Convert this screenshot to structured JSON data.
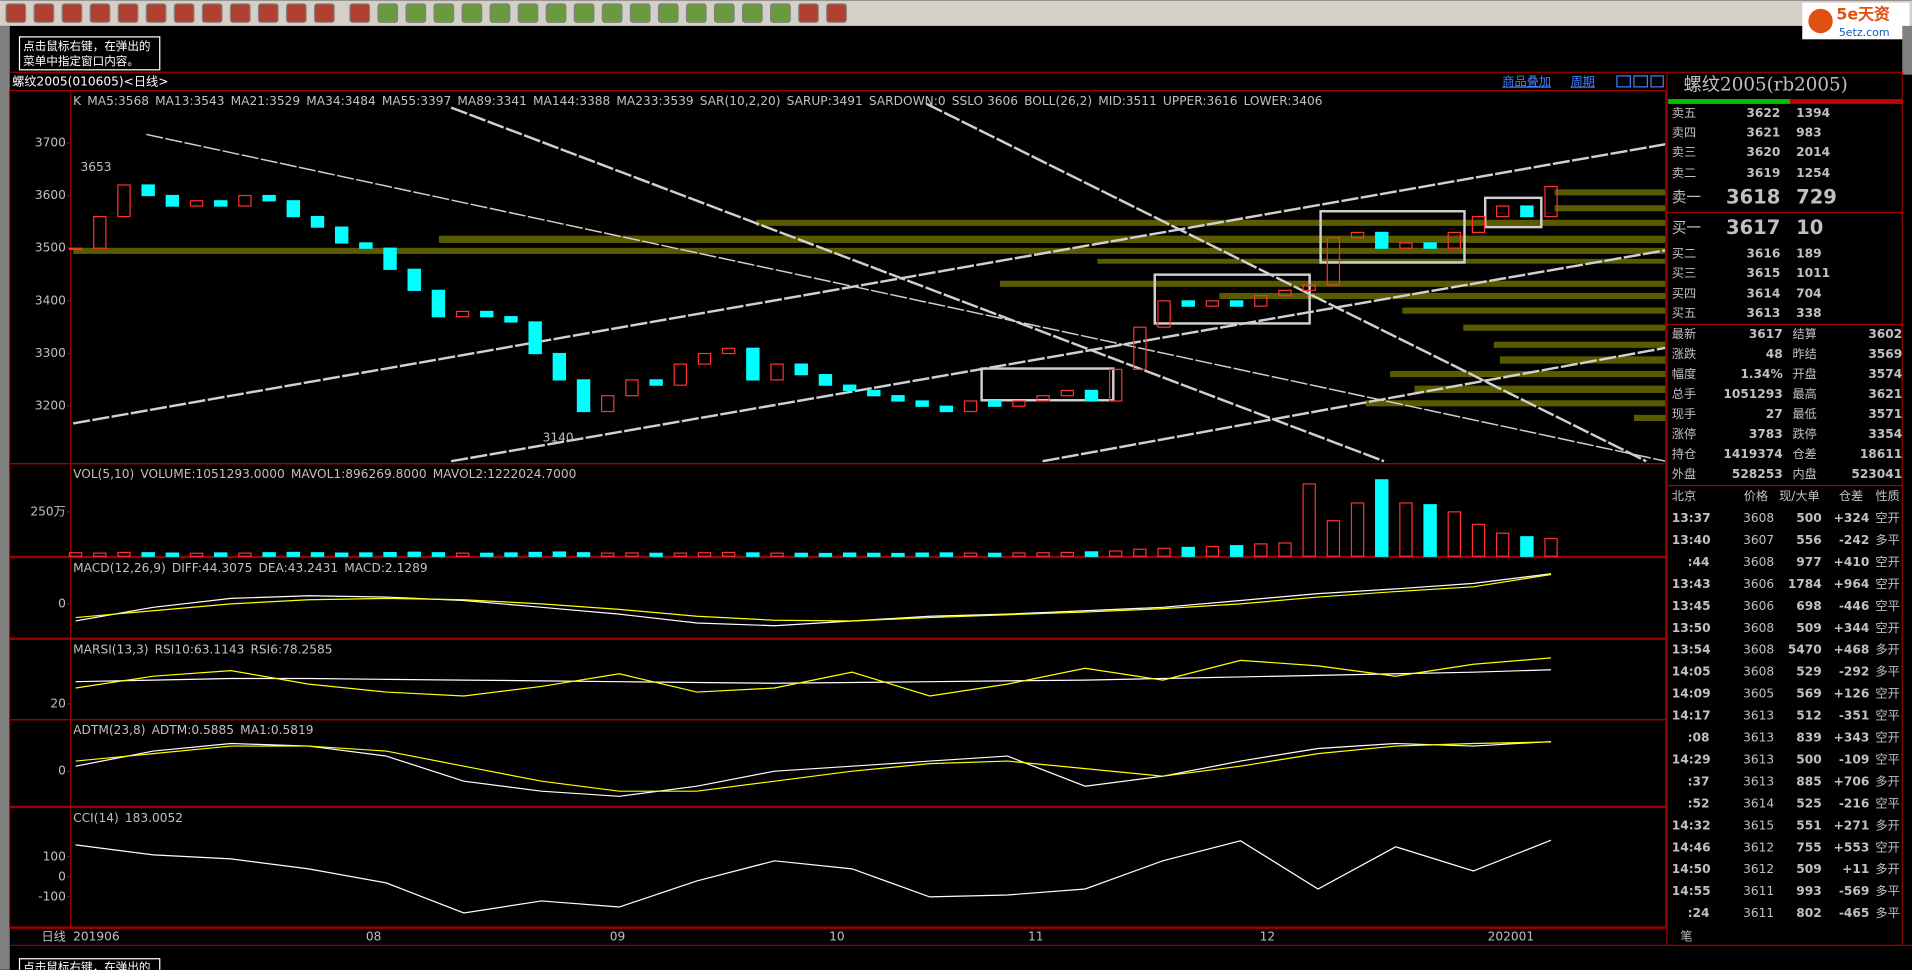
{
  "info_box": {
    "lines": [
      "点击鼠标右键，在弹出的",
      "菜单中指定窗口内容。"
    ]
  },
  "logo": {
    "brand": "5e天资",
    "site": "5etz.com"
  },
  "chart_header": {
    "title": "螺纹2005(010605)<日线>",
    "links": [
      "商品叠加",
      "周期"
    ]
  },
  "x_axis": {
    "period": "日线",
    "labels": [
      "201906",
      "08",
      "09",
      "10",
      "11",
      "12",
      "202001"
    ]
  },
  "chart_data": [
    {
      "type": "candle",
      "legend_items": [
        {
          "text": "K",
          "color": "#ffffff"
        },
        {
          "text": "MA5:3568",
          "color": "#ffffff"
        },
        {
          "text": "MA13:3543",
          "color": "#ffff00"
        },
        {
          "text": "MA21:3529",
          "color": "#ff00ff"
        },
        {
          "text": "MA34:3484",
          "color": "#00ff00"
        },
        {
          "text": "MA55:3397",
          "color": "#8080ff"
        },
        {
          "text": "MA89:3341",
          "color": "#ff8000"
        },
        {
          "text": "MA144:3388",
          "color": "#40a0ff"
        },
        {
          "text": "MA233:3539",
          "color": "#ff4040"
        },
        {
          "text": "SAR(10,2,20)",
          "color": "#c0c0c0"
        },
        {
          "text": "SARUP:3491",
          "color": "#ff0000"
        },
        {
          "text": "SARDOWN:0",
          "color": "#00ff00"
        },
        {
          "text": "SSLO 3606",
          "color": "#ffffff"
        },
        {
          "text": "BOLL(26,2)",
          "color": "#ffffff"
        },
        {
          "text": "MID:3511",
          "color": "#ffff00"
        },
        {
          "text": "UPPER:3616",
          "color": "#ff00ff"
        },
        {
          "text": "LOWER:3406",
          "color": "#00ff00"
        }
      ],
      "series": [
        {
          "name": "K",
          "up_color": "#ff3030",
          "down_color": "#00ffff",
          "values": [
            3500,
            3560,
            3620,
            3600,
            3580,
            3590,
            3580,
            3600,
            3590,
            3560,
            3540,
            3510,
            3500,
            3460,
            3420,
            3370,
            3380,
            3370,
            3360,
            3300,
            3250,
            3190,
            3220,
            3250,
            3240,
            3280,
            3300,
            3310,
            3250,
            3280,
            3260,
            3240,
            3230,
            3220,
            3210,
            3200,
            3190,
            3210,
            3200,
            3210,
            3220,
            3230,
            3210,
            3270,
            3350,
            3400,
            3390,
            3400,
            3390,
            3410,
            3420,
            3430,
            3520,
            3530,
            3500,
            3510,
            3500,
            3530,
            3560,
            3580,
            3560,
            3617
          ]
        }
      ],
      "annotations": [
        3653,
        3140
      ],
      "ylim": [
        3091,
        3797
      ],
      "yticks": [
        3200,
        3300,
        3400,
        3500,
        3600,
        3700
      ]
    },
    {
      "type": "bar",
      "legend_items": [
        {
          "text": "VOL(5,10)",
          "color": "#c0c0c0"
        },
        {
          "text": "VOLUME:1051293.0000",
          "color": "#c0c0c0"
        },
        {
          "text": "MAVOL1:896269.8000",
          "color": "#ffffff"
        },
        {
          "text": "MAVOL2:1222024.7000",
          "color": "#ffff00"
        }
      ],
      "values": [
        20,
        18,
        22,
        20,
        18,
        17,
        19,
        18,
        20,
        22,
        20,
        18,
        19,
        21,
        23,
        20,
        18,
        17,
        19,
        22,
        24,
        20,
        18,
        19,
        17,
        18,
        20,
        22,
        19,
        18,
        17,
        16,
        18,
        17,
        16,
        18,
        19,
        18,
        17,
        19,
        20,
        22,
        25,
        30,
        40,
        45,
        50,
        55,
        60,
        70,
        75,
        407,
        200,
        300,
        430,
        300,
        290,
        250,
        180,
        130,
        110,
        100
      ],
      "ylim": [
        0,
        514
      ],
      "yticks": [
        {
          "value": 250,
          "label": "250万"
        }
      ]
    },
    {
      "type": "line",
      "legend_items": [
        {
          "text": "MACD(12,26,9)",
          "color": "#c0c0c0"
        },
        {
          "text": "DIFF:44.3075",
          "color": "#ffffff"
        },
        {
          "text": "DEA:43.2431",
          "color": "#ffff00"
        },
        {
          "text": "MACD:2.1289",
          "color": "#c0c0c0"
        }
      ],
      "series": [
        {
          "name": "DIFF",
          "color": "#ffffff",
          "values": [
            -25,
            -5,
            8,
            12,
            10,
            5,
            -5,
            -15,
            -28,
            -32,
            -25,
            -18,
            -15,
            -10,
            -5,
            5,
            15,
            22,
            30,
            44
          ]
        },
        {
          "name": "DEA",
          "color": "#ffff00",
          "values": [
            -20,
            -10,
            0,
            6,
            8,
            6,
            0,
            -8,
            -18,
            -24,
            -25,
            -20,
            -16,
            -12,
            -7,
            0,
            10,
            18,
            25,
            43
          ]
        }
      ],
      "ylim": [
        -50,
        66
      ],
      "yticks": [
        0
      ]
    },
    {
      "type": "line",
      "legend_items": [
        {
          "text": "MARSI(13,3)",
          "color": "#c0c0c0"
        },
        {
          "text": "RSI10:63.1143",
          "color": "#ffffff"
        },
        {
          "text": "RSI6:78.2585",
          "color": "#ffff00"
        }
      ],
      "series": [
        {
          "name": "RSI10",
          "color": "#ffffff",
          "values": [
            48,
            50,
            52,
            52,
            51,
            50,
            49,
            48,
            47,
            46,
            47,
            48,
            49,
            50,
            52,
            54,
            56,
            58,
            60,
            63
          ]
        },
        {
          "name": "RSI6",
          "color": "#ffff00",
          "values": [
            40,
            55,
            62,
            45,
            35,
            30,
            42,
            58,
            35,
            40,
            60,
            30,
            45,
            65,
            50,
            75,
            68,
            55,
            70,
            78
          ]
        }
      ],
      "ylim": [
        0,
        100
      ],
      "yticks": [
        20
      ]
    },
    {
      "type": "line",
      "legend_items": [
        {
          "text": "ADTM(23,8)",
          "color": "#c0c0c0"
        },
        {
          "text": "ADTM:0.5885",
          "color": "#ffffff"
        },
        {
          "text": "MA1:0.5819",
          "color": "#ffff00"
        }
      ],
      "series": [
        {
          "name": "ADTM",
          "color": "#ffffff",
          "values": [
            0.1,
            0.4,
            0.55,
            0.5,
            0.3,
            -0.2,
            -0.4,
            -0.5,
            -0.3,
            0,
            0.1,
            0.2,
            0.3,
            -0.3,
            -0.1,
            0.2,
            0.45,
            0.55,
            0.5,
            0.5885
          ]
        },
        {
          "name": "MA1",
          "color": "#ffff00",
          "values": [
            0.2,
            0.35,
            0.5,
            0.5,
            0.4,
            0.1,
            -0.2,
            -0.4,
            -0.4,
            -0.2,
            0,
            0.15,
            0.2,
            0.05,
            -0.1,
            0.1,
            0.35,
            0.5,
            0.55,
            0.5819
          ]
        }
      ],
      "ylim": [
        -0.7,
        1
      ],
      "yticks": [
        0
      ]
    },
    {
      "type": "line",
      "legend_items": [
        {
          "text": "CCI(14)",
          "color": "#c0c0c0"
        },
        {
          "text": "183.0052",
          "color": "#c0c0c0"
        }
      ],
      "series": [
        {
          "name": "CCI",
          "color": "#ffffff",
          "values": [
            160,
            110,
            90,
            40,
            -30,
            -180,
            -120,
            -150,
            -20,
            80,
            40,
            -100,
            -90,
            -60,
            80,
            180,
            -60,
            150,
            30,
            183.0052
          ]
        }
      ],
      "ylim": [
        -250,
        340
      ],
      "yticks": [
        100,
        0,
        -100
      ]
    }
  ],
  "quote_panel": {
    "title": "螺纹2005(rb2005)",
    "asks": [
      {
        "label": "卖五",
        "price": "3622",
        "volume": "1394"
      },
      {
        "label": "卖四",
        "price": "3621",
        "volume": "983"
      },
      {
        "label": "卖三",
        "price": "3620",
        "volume": "2014"
      },
      {
        "label": "卖二",
        "price": "3619",
        "volume": "1254"
      },
      {
        "label": "卖一",
        "price": "3618",
        "volume": "729"
      }
    ],
    "bids": [
      {
        "label": "买一",
        "price": "3617",
        "volume": "10"
      },
      {
        "label": "买二",
        "price": "3616",
        "volume": "189"
      },
      {
        "label": "买三",
        "price": "3615",
        "volume": "1011"
      },
      {
        "label": "买四",
        "price": "3614",
        "volume": "704"
      },
      {
        "label": "买五",
        "price": "3613",
        "volume": "338"
      }
    ],
    "stats": [
      [
        "最新",
        "3617",
        "结算",
        "3602"
      ],
      [
        "涨跌",
        "48",
        "昨结",
        "3569"
      ],
      [
        "幅度",
        "1.34%",
        "开盘",
        "3574"
      ],
      [
        "总手",
        "1051293",
        "最高",
        "3621"
      ],
      [
        "现手",
        "27",
        "最低",
        "3571"
      ],
      [
        "涨停",
        "3783",
        "跌停",
        "3354"
      ],
      [
        "持仓",
        "1419374",
        "仓差",
        "18611"
      ],
      [
        "外盘",
        "528253",
        "内盘",
        "523041"
      ]
    ],
    "trade_header": [
      "北京",
      "价格",
      "现/大单",
      "仓差",
      "性质"
    ],
    "trades": [
      {
        "time": "13:37",
        "price": "3608",
        "volume": "500",
        "change": "+324",
        "type": "空开",
        "color": "#00ff00"
      },
      {
        "time": "13:40",
        "price": "3607",
        "volume": "556",
        "change": "-242",
        "type": "多平",
        "color": "#00ff00"
      },
      {
        "time": ":44",
        "price": "3608",
        "volume": "977",
        "change": "+410",
        "type": "空开",
        "color": "#00ff00"
      },
      {
        "time": "13:43",
        "price": "3606",
        "volume": "1784",
        "change": "+964",
        "type": "空开",
        "color": "#00ff00"
      },
      {
        "time": "13:45",
        "price": "3606",
        "volume": "698",
        "change": "-446",
        "type": "空平",
        "color": "#ff3030"
      },
      {
        "time": "13:50",
        "price": "3608",
        "volume": "509",
        "change": "+344",
        "type": "空开",
        "color": "#00ff00"
      },
      {
        "time": "13:54",
        "price": "3608",
        "volume": "5470",
        "change": "+468",
        "type": "多开",
        "color": "#ff3030"
      },
      {
        "time": "14:05",
        "price": "3608",
        "volume": "529",
        "change": "-292",
        "type": "多平",
        "color": "#00ff00"
      },
      {
        "time": "14:09",
        "price": "3605",
        "volume": "569",
        "change": "+126",
        "type": "空开",
        "color": "#00ff00"
      },
      {
        "time": "14:17",
        "price": "3613",
        "volume": "512",
        "change": "-351",
        "type": "空平",
        "color": "#ff3030"
      },
      {
        "time": ":08",
        "price": "3613",
        "volume": "839",
        "change": "+343",
        "type": "空开",
        "color": "#00ff00"
      },
      {
        "time": "14:29",
        "price": "3613",
        "volume": "500",
        "change": "-109",
        "type": "空平",
        "color": "#ff3030"
      },
      {
        "time": ":37",
        "price": "3613",
        "volume": "885",
        "change": "+706",
        "type": "多开",
        "color": "#ff3030"
      },
      {
        "time": ":52",
        "price": "3614",
        "volume": "525",
        "change": "-216",
        "type": "空平",
        "color": "#ff3030"
      },
      {
        "time": "14:32",
        "price": "3615",
        "volume": "551",
        "change": "+271",
        "type": "多开",
        "color": "#ff3030"
      },
      {
        "time": "14:46",
        "price": "3612",
        "volume": "755",
        "change": "+553",
        "type": "空开",
        "color": "#00ff00"
      },
      {
        "time": "14:50",
        "price": "3612",
        "volume": "509",
        "change": "+11",
        "type": "多开",
        "color": "#ff3030"
      },
      {
        "time": "14:55",
        "price": "3611",
        "volume": "993",
        "change": "-569",
        "type": "多平",
        "color": "#00ff00"
      },
      {
        "time": ":24",
        "price": "3611",
        "volume": "802",
        "change": "-465",
        "type": "多平",
        "color": "#00ff00"
      }
    ]
  },
  "bottom_label": "笔"
}
